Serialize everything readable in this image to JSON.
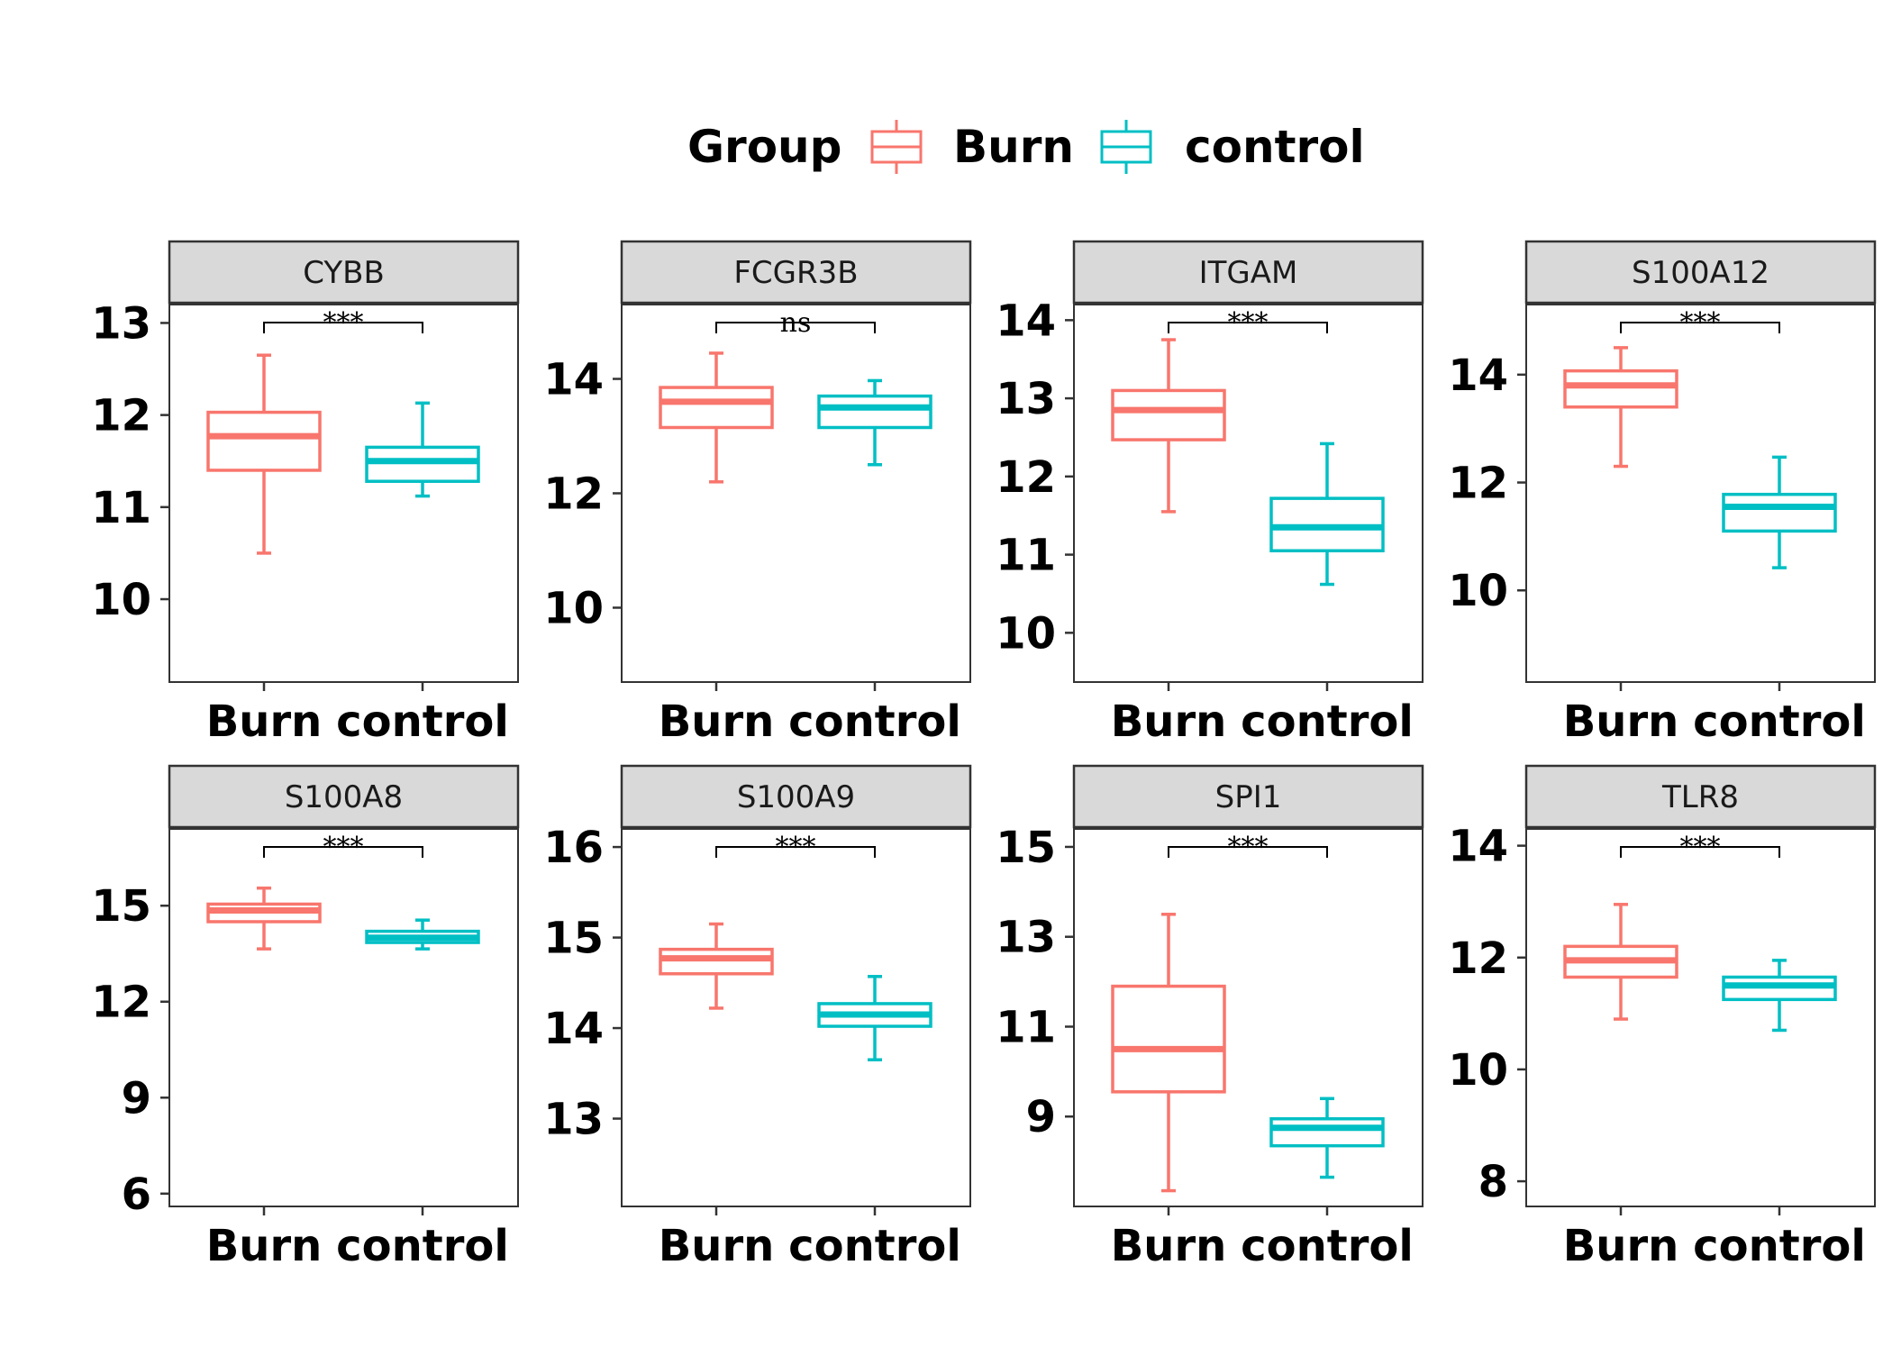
{
  "legend": {
    "title": "Group",
    "items": [
      {
        "label": "Burn",
        "color": "#F8766D"
      },
      {
        "label": "control",
        "color": "#00BFC4"
      }
    ]
  },
  "chart_data": {
    "type": "box",
    "categories": [
      "Burn",
      "control"
    ],
    "colors": {
      "Burn": "#F8766D",
      "control": "#00BFC4"
    },
    "legend_position": "top",
    "grid": false,
    "panels": [
      {
        "gene": "CYBB",
        "ylim": [
          9.1,
          13.2
        ],
        "yticks": [
          10,
          11,
          12,
          13
        ],
        "significance": "***",
        "boxes": {
          "Burn": {
            "whisker_low": 10.5,
            "q1": 11.4,
            "median": 11.77,
            "q3": 12.03,
            "whisker_high": 12.65
          },
          "control": {
            "whisker_low": 11.12,
            "q1": 11.28,
            "median": 11.5,
            "q3": 11.65,
            "whisker_high": 12.13
          }
        }
      },
      {
        "gene": "FCGR3B",
        "ylim": [
          8.7,
          15.3
        ],
        "yticks": [
          10,
          12,
          14
        ],
        "significance": "ns",
        "boxes": {
          "Burn": {
            "whisker_low": 12.2,
            "q1": 13.15,
            "median": 13.6,
            "q3": 13.85,
            "whisker_high": 14.45
          },
          "control": {
            "whisker_low": 12.5,
            "q1": 13.15,
            "median": 13.5,
            "q3": 13.7,
            "whisker_high": 13.97
          }
        }
      },
      {
        "gene": "ITGAM",
        "ylim": [
          9.37,
          14.2
        ],
        "yticks": [
          10,
          11,
          12,
          13,
          14
        ],
        "significance": "***",
        "boxes": {
          "Burn": {
            "whisker_low": 11.55,
            "q1": 12.47,
            "median": 12.85,
            "q3": 13.1,
            "whisker_high": 13.75
          },
          "control": {
            "whisker_low": 10.62,
            "q1": 11.05,
            "median": 11.35,
            "q3": 11.72,
            "whisker_high": 12.42
          }
        }
      },
      {
        "gene": "S100A12",
        "ylim": [
          8.3,
          15.3
        ],
        "yticks": [
          10,
          12,
          14
        ],
        "significance": "***",
        "boxes": {
          "Burn": {
            "whisker_low": 12.3,
            "q1": 13.4,
            "median": 13.8,
            "q3": 14.07,
            "whisker_high": 14.5
          },
          "control": {
            "whisker_low": 10.42,
            "q1": 11.1,
            "median": 11.55,
            "q3": 11.78,
            "whisker_high": 12.47
          }
        }
      },
      {
        "gene": "S100A8",
        "ylim": [
          5.6,
          17.4
        ],
        "yticks": [
          6,
          9,
          12,
          15
        ],
        "significance": "***",
        "boxes": {
          "Burn": {
            "whisker_low": 13.65,
            "q1": 14.5,
            "median": 14.85,
            "q3": 15.05,
            "whisker_high": 15.55
          },
          "control": {
            "whisker_low": 13.65,
            "q1": 13.85,
            "median": 14.0,
            "q3": 14.2,
            "whisker_high": 14.55
          }
        }
      },
      {
        "gene": "S100A9",
        "ylim": [
          12.03,
          16.2
        ],
        "yticks": [
          13,
          14,
          15,
          16
        ],
        "significance": "***",
        "boxes": {
          "Burn": {
            "whisker_low": 14.22,
            "q1": 14.6,
            "median": 14.77,
            "q3": 14.87,
            "whisker_high": 15.15
          },
          "control": {
            "whisker_low": 13.65,
            "q1": 14.02,
            "median": 14.15,
            "q3": 14.27,
            "whisker_high": 14.57
          }
        }
      },
      {
        "gene": "SPI1",
        "ylim": [
          7.0,
          15.4
        ],
        "yticks": [
          9,
          11,
          13,
          15
        ],
        "significance": "***",
        "boxes": {
          "Burn": {
            "whisker_low": 7.35,
            "q1": 9.55,
            "median": 10.5,
            "q3": 11.9,
            "whisker_high": 13.5
          },
          "control": {
            "whisker_low": 7.65,
            "q1": 8.35,
            "median": 8.75,
            "q3": 8.95,
            "whisker_high": 9.4
          }
        }
      },
      {
        "gene": "TLR8",
        "ylim": [
          7.55,
          14.3
        ],
        "yticks": [
          8,
          10,
          12,
          14
        ],
        "significance": "***",
        "boxes": {
          "Burn": {
            "whisker_low": 10.9,
            "q1": 11.65,
            "median": 11.95,
            "q3": 12.2,
            "whisker_high": 12.95
          },
          "control": {
            "whisker_low": 10.7,
            "q1": 11.25,
            "median": 11.5,
            "q3": 11.65,
            "whisker_high": 11.95
          }
        }
      }
    ]
  }
}
